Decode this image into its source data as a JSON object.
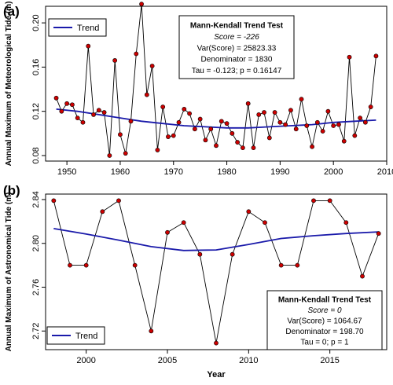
{
  "chart_data": [
    {
      "type": "line",
      "panel_label": "(a)",
      "xlabel": "",
      "ylabel": "Annual Maximum of Meteorological Tide (m)",
      "xlim": [
        1946,
        2010
      ],
      "ylim": [
        0.075,
        0.215
      ],
      "x_ticks": [
        "1950",
        "1960",
        "1970",
        "1980",
        "1990",
        "2000",
        "2010"
      ],
      "x_tick_values": [
        1950,
        1960,
        1970,
        1980,
        1990,
        2000,
        2010
      ],
      "y_ticks": [
        "0.08",
        "0.12",
        "0.16",
        "0.20"
      ],
      "y_tick_values": [
        0.08,
        0.12,
        0.16,
        0.2
      ],
      "series": [
        {
          "x": [
            1948,
            1949,
            1950,
            1951,
            1952,
            1953,
            1954,
            1955,
            1956,
            1957,
            1958,
            1959,
            1960,
            1961,
            1962,
            1963,
            1964,
            1965,
            1966,
            1967,
            1968,
            1969,
            1970,
            1971,
            1972,
            1973,
            1974,
            1975,
            1976,
            1977,
            1978,
            1979,
            1980,
            1981,
            1982,
            1983,
            1984,
            1985,
            1986,
            1987,
            1988,
            1989,
            1990,
            1991,
            1992,
            1993,
            1994,
            1995,
            1996,
            1997,
            1998,
            1999,
            2000,
            2001,
            2002,
            2003,
            2004,
            2005,
            2006,
            2007,
            2008
          ],
          "values": [
            0.132,
            0.12,
            0.127,
            0.126,
            0.114,
            0.11,
            0.179,
            0.117,
            0.121,
            0.119,
            0.08,
            0.166,
            0.099,
            0.082,
            0.111,
            0.172,
            0.217,
            0.135,
            0.161,
            0.085,
            0.124,
            0.097,
            0.098,
            0.11,
            0.122,
            0.118,
            0.104,
            0.113,
            0.094,
            0.104,
            0.089,
            0.111,
            0.109,
            0.1,
            0.092,
            0.087,
            0.127,
            0.087,
            0.117,
            0.119,
            0.096,
            0.119,
            0.11,
            0.108,
            0.121,
            0.104,
            0.131,
            0.107,
            0.088,
            0.11,
            0.102,
            0.12,
            0.107,
            0.108,
            0.093,
            0.169,
            0.098,
            0.114,
            0.11,
            0.124,
            0.17
          ]
        }
      ],
      "trend": {
        "x": [
          1948,
          1952,
          1956,
          1960,
          1964,
          1968,
          1972,
          1976,
          1980,
          1984,
          1988,
          1992,
          1996,
          2000,
          2004,
          2008
        ],
        "values": [
          0.122,
          0.12,
          0.117,
          0.114,
          0.111,
          0.109,
          0.107,
          0.106,
          0.105,
          0.105,
          0.106,
          0.107,
          0.108,
          0.11,
          0.111,
          0.112
        ]
      },
      "legend": {
        "label": "Trend",
        "position": "top-left"
      },
      "stats_box": {
        "title": "Mann-Kendall Trend Test",
        "lines": [
          "Score = -226",
          "Var(Score) = 25823.33",
          "Denominator = 1830",
          "Tau = -0.123; p = 0.16147"
        ],
        "position": "top-center"
      },
      "colors": {
        "points": "#cc0000",
        "line": "#000000",
        "trend": "#1a1aaa"
      }
    },
    {
      "type": "line",
      "panel_label": "(b)",
      "xlabel": "Year",
      "ylabel": "Annual Maximum of Astronomical Tide (m)",
      "xlim": [
        1997.5,
        2018.5
      ],
      "ylim": [
        2.703,
        2.845
      ],
      "x_ticks": [
        "2000",
        "2005",
        "2010",
        "2015"
      ],
      "x_tick_values": [
        2000,
        2005,
        2010,
        2015
      ],
      "y_ticks": [
        "2.72",
        "2.76",
        "2.80",
        "2.84"
      ],
      "y_tick_values": [
        2.72,
        2.76,
        2.8,
        2.84
      ],
      "series": [
        {
          "x": [
            1998,
            1999,
            2000,
            2001,
            2002,
            2003,
            2004,
            2005,
            2006,
            2007,
            2008,
            2009,
            2010,
            2011,
            2012,
            2013,
            2014,
            2015,
            2016,
            2017,
            2018
          ],
          "values": [
            2.839,
            2.78,
            2.78,
            2.829,
            2.839,
            2.78,
            2.72,
            2.81,
            2.819,
            2.79,
            2.709,
            2.79,
            2.829,
            2.819,
            2.78,
            2.78,
            2.839,
            2.839,
            2.819,
            2.77,
            2.809
          ]
        }
      ],
      "trend": {
        "x": [
          1998,
          2000,
          2002,
          2004,
          2006,
          2008,
          2010,
          2012,
          2014,
          2016,
          2018
        ],
        "values": [
          2.8135,
          2.8085,
          2.803,
          2.797,
          2.7935,
          2.794,
          2.799,
          2.8045,
          2.807,
          2.809,
          2.8105
        ]
      },
      "legend": {
        "label": "Trend",
        "position": "bottom-left"
      },
      "stats_box": {
        "title": "Mann-Kendall Trend Test",
        "lines": [
          "Score = 0",
          "Var(Score) = 1064.67",
          "Denominator = 198.70",
          "Tau = 0; p = 1"
        ],
        "position": "bottom-right"
      },
      "colors": {
        "points": "#cc0000",
        "line": "#000000",
        "trend": "#1a1aaa"
      }
    }
  ]
}
